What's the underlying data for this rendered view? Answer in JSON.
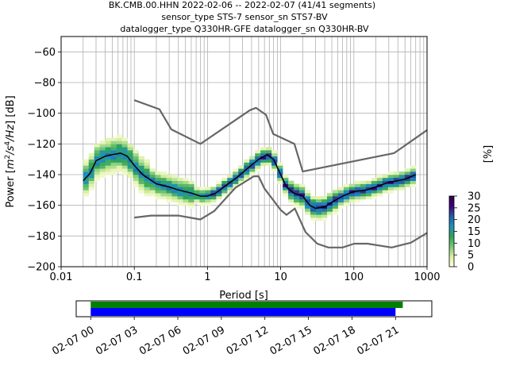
{
  "title": {
    "line1": "BK.CMB.00.HHN   2022-02-06 -- 2022-02-07  (41/41 segments)",
    "line2": "sensor_type STS-7 sensor_sn STS7-BV",
    "line3": "datalogger_type Q330HR-GFE datalogger_sn Q330HR-BV"
  },
  "chart_data": {
    "type": "heatmap",
    "xlabel": "Period [s]",
    "xscale": "log",
    "xlim": [
      0.01,
      1000
    ],
    "xticks": [
      {
        "value": 0.01,
        "label": "0.01"
      },
      {
        "value": 0.1,
        "label": "0.1"
      },
      {
        "value": 1,
        "label": "1"
      },
      {
        "value": 10,
        "label": "10"
      },
      {
        "value": 100,
        "label": "100"
      },
      {
        "value": 1000,
        "label": "1000"
      }
    ],
    "ylabel_parts": [
      "Power [",
      "m",
      "2",
      "/s",
      "4",
      "/Hz",
      "] [dB]"
    ],
    "ylim": [
      -200,
      -50
    ],
    "yticks": [
      -60,
      -80,
      -100,
      -120,
      -140,
      -160,
      -180,
      -200
    ],
    "yticklabels": [
      "−60",
      "−80",
      "−100",
      "−120",
      "−140",
      "−160",
      "−180",
      "−200"
    ],
    "grid": true,
    "colorbar": {
      "label": "[%]",
      "range": [
        0,
        30
      ],
      "ticks": [
        "0",
        "5",
        "10",
        "15",
        "20",
        "25",
        "30"
      ],
      "colors": [
        "#ffffe5",
        "#d9f0a3",
        "#78c679",
        "#31a354",
        "#1d91c0",
        "#225ea8",
        "#3f007d",
        "#2d004b"
      ]
    },
    "series": [
      {
        "role": "mean",
        "color": "#000000",
        "points": [
          [
            0.02,
            -144
          ],
          [
            0.025,
            -139
          ],
          [
            0.03,
            -131
          ],
          [
            0.04,
            -128
          ],
          [
            0.05,
            -127
          ],
          [
            0.065,
            -126
          ],
          [
            0.08,
            -128
          ],
          [
            0.1,
            -134
          ],
          [
            0.13,
            -140
          ],
          [
            0.2,
            -146
          ],
          [
            0.3,
            -148
          ],
          [
            0.4,
            -150
          ],
          [
            0.6,
            -152
          ],
          [
            0.8,
            -154
          ],
          [
            1.0,
            -154
          ],
          [
            1.3,
            -152
          ],
          [
            1.8,
            -147
          ],
          [
            2.5,
            -142
          ],
          [
            3.5,
            -136
          ],
          [
            5,
            -130
          ],
          [
            6.5,
            -127
          ],
          [
            8,
            -130
          ],
          [
            10,
            -140
          ],
          [
            12,
            -148
          ],
          [
            15,
            -152
          ],
          [
            20,
            -154
          ],
          [
            25,
            -160
          ],
          [
            30,
            -162
          ],
          [
            40,
            -161
          ],
          [
            50,
            -158
          ],
          [
            70,
            -154
          ],
          [
            100,
            -151
          ],
          [
            150,
            -150
          ],
          [
            200,
            -148
          ],
          [
            300,
            -145
          ],
          [
            400,
            -144
          ],
          [
            500,
            -143
          ],
          [
            700,
            -140
          ]
        ]
      },
      {
        "role": "high-noise-model",
        "color": "#666666",
        "points": [
          [
            0.1,
            -91.5
          ],
          [
            0.22,
            -97.4
          ],
          [
            0.32,
            -110.5
          ],
          [
            0.8,
            -120
          ],
          [
            3.8,
            -98
          ],
          [
            4.6,
            -96.5
          ],
          [
            6.3,
            -101
          ],
          [
            7.9,
            -113.5
          ],
          [
            15.4,
            -120
          ],
          [
            20,
            -138
          ],
          [
            354.8,
            -126
          ],
          [
            1000,
            -111
          ]
        ]
      },
      {
        "role": "low-noise-model",
        "color": "#666666",
        "points": [
          [
            0.1,
            -168
          ],
          [
            0.17,
            -166.7
          ],
          [
            0.4,
            -166.7
          ],
          [
            0.8,
            -169.2
          ],
          [
            1.24,
            -163.7
          ],
          [
            2.4,
            -148.6
          ],
          [
            4.3,
            -141.1
          ],
          [
            5,
            -141.1
          ],
          [
            6,
            -149
          ],
          [
            10,
            -163
          ],
          [
            12,
            -166.2
          ],
          [
            15.6,
            -162.1
          ],
          [
            21.9,
            -177.5
          ],
          [
            31.6,
            -185
          ],
          [
            45,
            -187.5
          ],
          [
            70,
            -187.5
          ],
          [
            101,
            -185
          ],
          [
            154,
            -185
          ],
          [
            328,
            -187.5
          ],
          [
            600,
            -184.4
          ],
          [
            1000,
            -178
          ]
        ]
      }
    ],
    "timeline": {
      "ticks": [
        "02-07 00",
        "02-07 03",
        "02-07 06",
        "02-07 09",
        "02-07 12",
        "02-07 15",
        "02-07 18",
        "02-07 21"
      ],
      "range_hours": [
        -1,
        23.5
      ],
      "data_bar": {
        "color": "#008000",
        "start_hours": 0,
        "end_hours": 21.5
      },
      "psd_bar": {
        "color": "#0000ff",
        "start_hours": 0,
        "end_hours": 21
      }
    }
  }
}
